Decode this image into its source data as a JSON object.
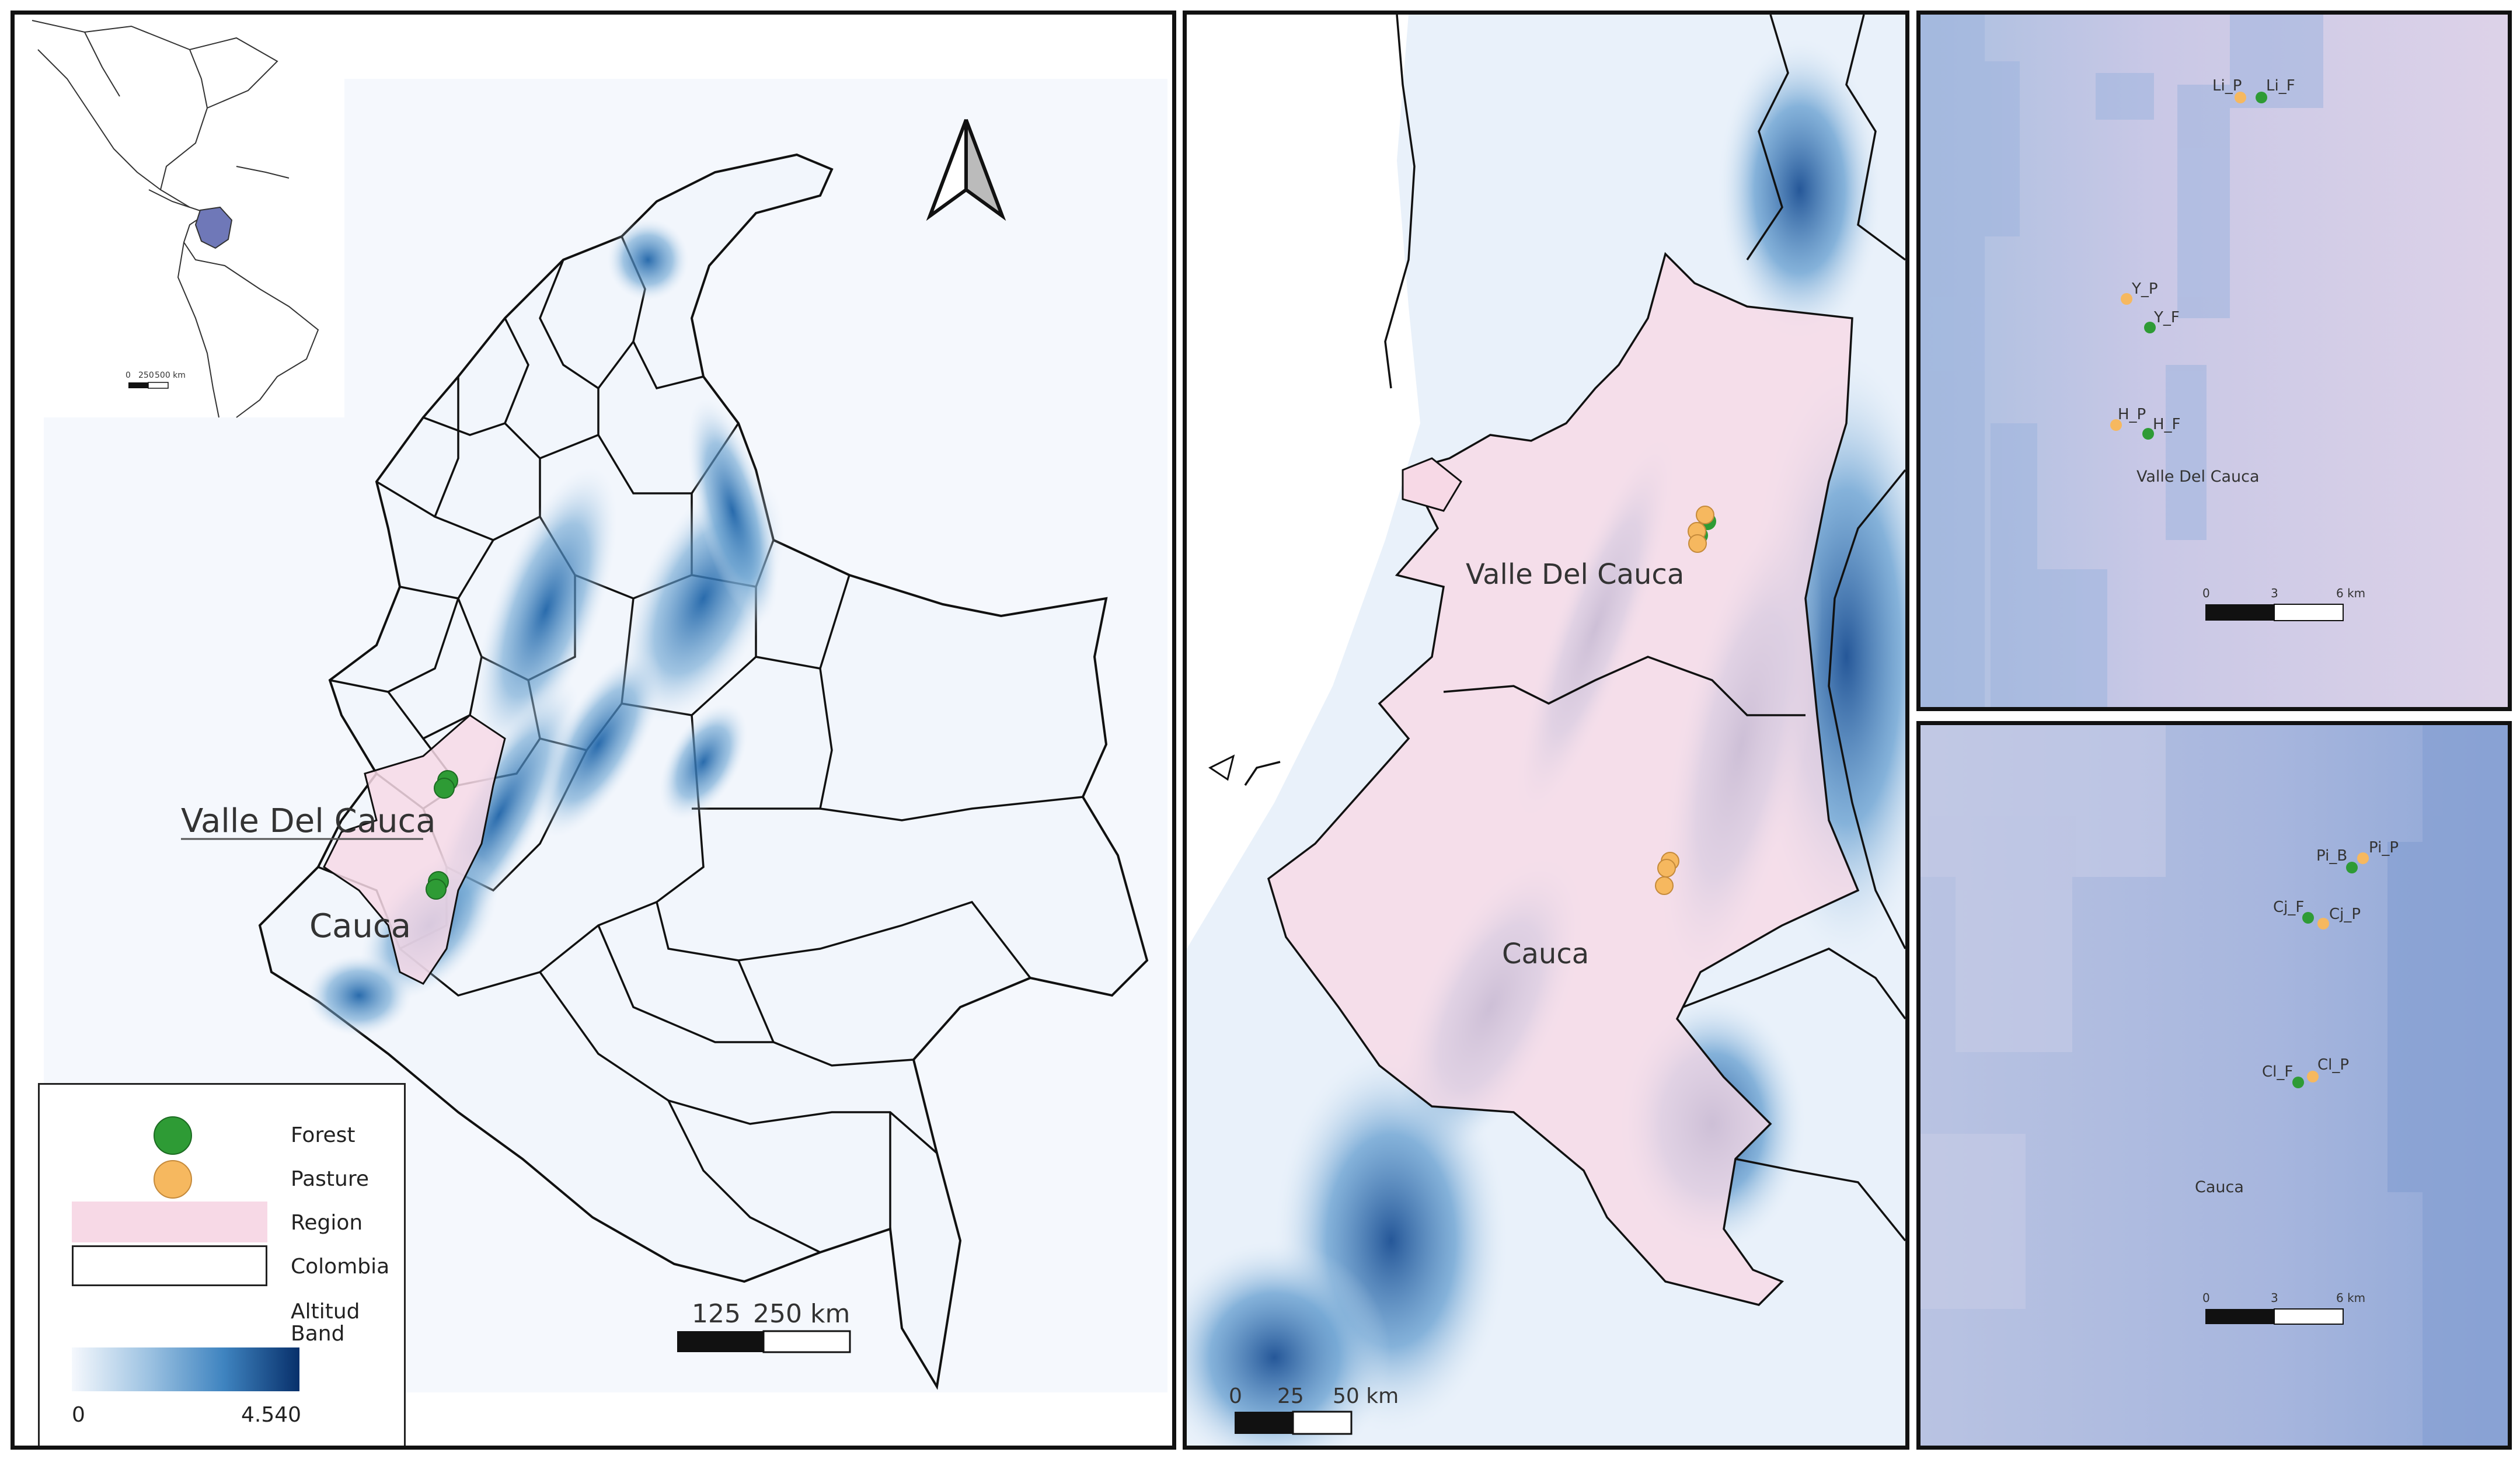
{
  "colors": {
    "forest": "#2e9b35",
    "pasture": "#f6b85f",
    "region": "#f7d9e6",
    "altitude_low": "#f5f8fd",
    "altitude_high": "#08306b",
    "north_arrow": "#555555"
  },
  "panel_colombia": {
    "region_labels": [
      "Valle Del Cauca",
      "Cauca"
    ],
    "inset_scale": {
      "ticks": [
        "0",
        "250",
        "500 km"
      ]
    },
    "scale_bar": {
      "ticks": [
        "125",
        "250 km"
      ]
    },
    "north_arrow_icon": "north-arrow-icon"
  },
  "legend": {
    "items": [
      {
        "label": "Forest",
        "symbol": "dot",
        "color": "#2e9b35"
      },
      {
        "label": "Pasture",
        "symbol": "dot",
        "color": "#f6b85f"
      },
      {
        "label": "Region",
        "symbol": "fill",
        "color": "#f7d9e6"
      },
      {
        "label": "Colombia",
        "symbol": "outline",
        "color": "#ffffff"
      }
    ],
    "band_title_line1": "Altitud",
    "band_title_line2": "Band",
    "band_min": "0",
    "band_max": "4.540"
  },
  "panel_region": {
    "labels": [
      "Valle Del Cauca",
      "Cauca"
    ],
    "scale_bar": {
      "ticks": [
        "0",
        "25",
        "50 km"
      ]
    }
  },
  "panel_valle": {
    "sites": [
      {
        "label": "Li_P",
        "type": "pasture"
      },
      {
        "label": "Li_F",
        "type": "forest"
      },
      {
        "label": "Y_P",
        "type": "pasture"
      },
      {
        "label": "Y_F",
        "type": "forest"
      },
      {
        "label": "H_P",
        "type": "pasture"
      },
      {
        "label": "H_F",
        "type": "forest"
      }
    ],
    "region_label": "Valle Del Cauca",
    "scale_bar": {
      "ticks": [
        "0",
        "3",
        "6 km"
      ]
    }
  },
  "panel_cauca": {
    "sites": [
      {
        "label": "Pi_B",
        "type": "forest"
      },
      {
        "label": "Pi_P",
        "type": "pasture"
      },
      {
        "label": "Cj_F",
        "type": "forest"
      },
      {
        "label": "Cj_P",
        "type": "pasture"
      },
      {
        "label": "Cl_F",
        "type": "forest"
      },
      {
        "label": "Cl_P",
        "type": "pasture"
      }
    ],
    "region_label": "Cauca",
    "scale_bar": {
      "ticks": [
        "0",
        "3",
        "6 km"
      ]
    }
  }
}
